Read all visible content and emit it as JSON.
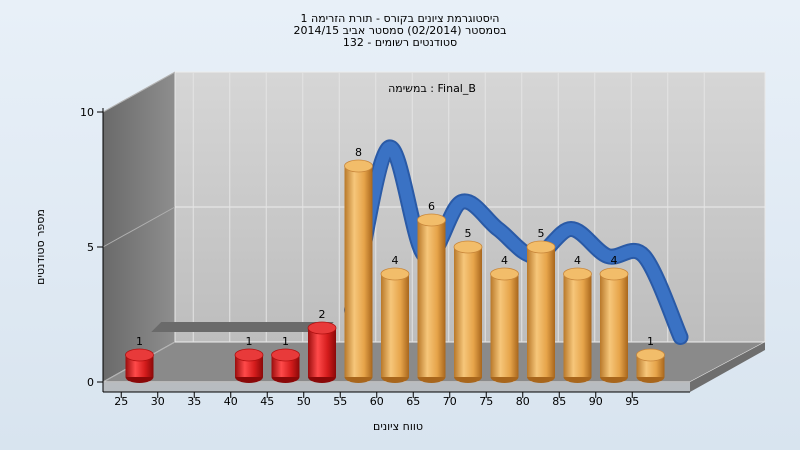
{
  "title_lines": [
    "היסטוגרמת ציונים בקורס - תורת הזרימה 1",
    "בסמסטר  (02/2014)  סמסטר אביב 2014/15",
    "סטודנטים רשומים - 132"
  ],
  "chart_data": {
    "type": "bar",
    "subtitle": "במשימה : Final_B",
    "xlabel": "טווח ציונים",
    "ylabel": "מספר סטודנטים",
    "ylim": [
      0,
      10
    ],
    "y_ticks": [
      "0",
      "5",
      "10"
    ],
    "x_ticks": [
      "25",
      "30",
      "35",
      "40",
      "45",
      "50",
      "55",
      "60",
      "65",
      "70",
      "75",
      "80",
      "85",
      "90",
      "95"
    ],
    "bars": [
      {
        "x": 27.5,
        "value": 1,
        "label": "1",
        "color": "red"
      },
      {
        "x": 42.5,
        "value": 1,
        "label": "1",
        "color": "red"
      },
      {
        "x": 47.5,
        "value": 1,
        "label": "1",
        "color": "red"
      },
      {
        "x": 52.5,
        "value": 2,
        "label": "2",
        "color": "red"
      },
      {
        "x": 57.5,
        "value": 8,
        "label": "8",
        "color": "orange"
      },
      {
        "x": 62.5,
        "value": 4,
        "label": "4",
        "color": "orange"
      },
      {
        "x": 67.5,
        "value": 6,
        "label": "6",
        "color": "orange"
      },
      {
        "x": 72.5,
        "value": 5,
        "label": "5",
        "color": "orange"
      },
      {
        "x": 77.5,
        "value": 4,
        "label": "4",
        "color": "orange"
      },
      {
        "x": 82.5,
        "value": 5,
        "label": "5",
        "color": "orange"
      },
      {
        "x": 87.5,
        "value": 4,
        "label": "4",
        "color": "orange"
      },
      {
        "x": 92.5,
        "value": 4,
        "label": "4",
        "color": "orange"
      },
      {
        "x": 97.5,
        "value": 1,
        "label": "1",
        "color": "orange"
      }
    ],
    "curve": {
      "x": [
        52.5,
        57.5,
        62.5,
        67.5,
        72.5,
        77.5,
        82.5,
        87.5,
        92.5,
        97.5
      ],
      "values": [
        2,
        8,
        4,
        6,
        5,
        4,
        5,
        4,
        4,
        1
      ]
    },
    "colors": {
      "red": "#d41c1c",
      "orange": "#e8a84a",
      "curve": "#3a72c4",
      "back_wall": "#c8c8c8",
      "side_wall": "#7d7d7d",
      "floor": "#8a8a8a"
    }
  }
}
